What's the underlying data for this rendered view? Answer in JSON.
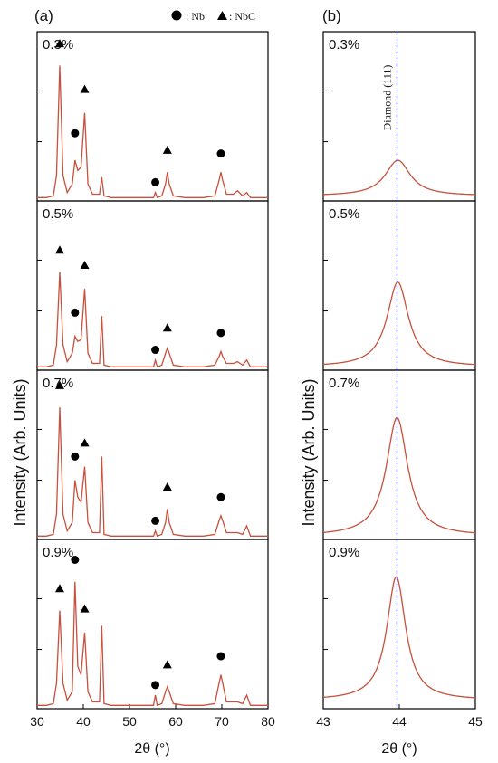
{
  "figure": {
    "panel_a_label": "(a)",
    "panel_b_label": "(b)",
    "legend_nb": ": Nb",
    "legend_nbc": ": NbC",
    "y_axis_label": "Intensity (Arb. Units)",
    "x_axis_label": "2θ (°)",
    "diamond_label": "Diamond (111)",
    "panel_a_ticks": [
      "30",
      "40",
      "50",
      "60",
      "70",
      "80"
    ],
    "panel_b_ticks": [
      "43",
      "44",
      "45"
    ],
    "colors": {
      "curve": "#c8503c",
      "reference_line": "#3b4bd8",
      "axes": "#000000"
    }
  },
  "chart_data": [
    {
      "type": "line",
      "panel": "(a)",
      "xlabel": "2θ (°)",
      "ylabel": "Intensity (Arb. Units)",
      "xlim": [
        30,
        80
      ],
      "ylim": [
        0,
        1
      ],
      "grid": false,
      "legend": [
        {
          "marker": "circle",
          "label": ": Nb"
        },
        {
          "marker": "triangle",
          "label": ": NbC"
        }
      ],
      "series": [
        {
          "label": "0.3%",
          "x": [
            30,
            32,
            33.5,
            34.2,
            34.9,
            35.6,
            36.5,
            37.6,
            38.2,
            38.8,
            39.5,
            40.3,
            41,
            42,
            43.5,
            44,
            44.5,
            46,
            48,
            50,
            52,
            54,
            55.2,
            55.6,
            56,
            57,
            57.8,
            58.2,
            58.6,
            59.5,
            62,
            66,
            68.5,
            69.4,
            69.8,
            70.2,
            71,
            72.5,
            73.4,
            74.5,
            75.4,
            76.2,
            78,
            80
          ],
          "y": [
            0.02,
            0.02,
            0.03,
            0.15,
            0.8,
            0.15,
            0.05,
            0.1,
            0.24,
            0.18,
            0.2,
            0.52,
            0.1,
            0.04,
            0.04,
            0.14,
            0.03,
            0.02,
            0.02,
            0.02,
            0.02,
            0.02,
            0.02,
            0.05,
            0.02,
            0.03,
            0.1,
            0.17,
            0.1,
            0.03,
            0.02,
            0.02,
            0.03,
            0.12,
            0.17,
            0.12,
            0.04,
            0.04,
            0.06,
            0.03,
            0.05,
            0.02,
            0.02,
            0.02
          ]
        },
        {
          "label": "0.5%",
          "x": [
            30,
            32,
            33.5,
            34.2,
            34.9,
            35.6,
            36.5,
            37.6,
            38.2,
            38.8,
            39.5,
            40.3,
            41,
            42,
            43.5,
            44,
            44.5,
            46,
            48,
            50,
            52,
            54,
            55.2,
            55.6,
            56,
            57,
            57.8,
            58.2,
            58.6,
            59.5,
            62,
            66,
            68.5,
            69.4,
            69.8,
            70.2,
            71,
            72.5,
            73.4,
            74.5,
            75.4,
            76.2,
            78,
            80
          ],
          "y": [
            0.02,
            0.02,
            0.03,
            0.15,
            0.58,
            0.15,
            0.05,
            0.1,
            0.2,
            0.17,
            0.18,
            0.48,
            0.1,
            0.04,
            0.04,
            0.32,
            0.03,
            0.02,
            0.02,
            0.02,
            0.02,
            0.02,
            0.02,
            0.06,
            0.02,
            0.03,
            0.1,
            0.13,
            0.1,
            0.03,
            0.02,
            0.02,
            0.03,
            0.08,
            0.11,
            0.08,
            0.04,
            0.04,
            0.05,
            0.03,
            0.06,
            0.02,
            0.02,
            0.02
          ]
        },
        {
          "label": "0.7%",
          "x": [
            30,
            32,
            33.5,
            34.2,
            34.9,
            35.6,
            36.5,
            37.6,
            38.2,
            38.8,
            39.5,
            40.3,
            41,
            42,
            43.5,
            44,
            44.5,
            46,
            48,
            50,
            52,
            54,
            55.2,
            55.6,
            56,
            57,
            57.8,
            58.2,
            58.6,
            59.5,
            62,
            66,
            68.5,
            69.4,
            69.8,
            70.2,
            71,
            72.5,
            73.4,
            74.5,
            75.4,
            76.2,
            78,
            80
          ],
          "y": [
            0.02,
            0.02,
            0.03,
            0.15,
            0.78,
            0.15,
            0.05,
            0.1,
            0.35,
            0.25,
            0.22,
            0.43,
            0.1,
            0.04,
            0.04,
            0.49,
            0.03,
            0.02,
            0.02,
            0.02,
            0.02,
            0.02,
            0.02,
            0.05,
            0.02,
            0.03,
            0.1,
            0.18,
            0.1,
            0.03,
            0.02,
            0.02,
            0.03,
            0.11,
            0.14,
            0.11,
            0.04,
            0.04,
            0.04,
            0.03,
            0.08,
            0.02,
            0.02,
            0.02
          ]
        },
        {
          "label": "0.9%",
          "x": [
            30,
            32,
            33.5,
            34.2,
            34.9,
            35.6,
            36.5,
            37.6,
            38.2,
            38.8,
            39.5,
            40.3,
            41,
            42,
            43.5,
            44,
            44.5,
            46,
            48,
            50,
            52,
            54,
            55.2,
            55.6,
            56,
            57,
            57.8,
            58.2,
            58.6,
            59.5,
            62,
            66,
            68.5,
            69.4,
            69.8,
            70.2,
            71,
            72.5,
            73.4,
            74.5,
            75.4,
            76.2,
            78,
            80
          ],
          "y": [
            0.02,
            0.02,
            0.03,
            0.15,
            0.58,
            0.15,
            0.05,
            0.1,
            0.75,
            0.25,
            0.2,
            0.45,
            0.1,
            0.04,
            0.04,
            0.49,
            0.03,
            0.02,
            0.02,
            0.02,
            0.02,
            0.02,
            0.02,
            0.08,
            0.02,
            0.03,
            0.1,
            0.13,
            0.1,
            0.03,
            0.02,
            0.02,
            0.03,
            0.15,
            0.2,
            0.15,
            0.04,
            0.04,
            0.04,
            0.03,
            0.08,
            0.02,
            0.02,
            0.02
          ]
        }
      ],
      "markers": {
        "nb_circle": [
          {
            "panel": "0.3%",
            "x": 38.2,
            "y": 0.4
          },
          {
            "panel": "0.3%",
            "x": 55.6,
            "y": 0.11
          },
          {
            "panel": "0.3%",
            "x": 69.8,
            "y": 0.28
          },
          {
            "panel": "0.5%",
            "x": 38.2,
            "y": 0.34
          },
          {
            "panel": "0.5%",
            "x": 55.6,
            "y": 0.12
          },
          {
            "panel": "0.5%",
            "x": 69.8,
            "y": 0.22
          },
          {
            "panel": "0.7%",
            "x": 38.2,
            "y": 0.49
          },
          {
            "panel": "0.7%",
            "x": 55.6,
            "y": 0.11
          },
          {
            "panel": "0.7%",
            "x": 69.8,
            "y": 0.25
          },
          {
            "panel": "0.9%",
            "x": 38.2,
            "y": 0.88
          },
          {
            "panel": "0.9%",
            "x": 55.6,
            "y": 0.14
          },
          {
            "panel": "0.9%",
            "x": 69.8,
            "y": 0.31
          }
        ],
        "nbc_triangle": [
          {
            "panel": "0.3%",
            "x": 34.9,
            "y": 0.93
          },
          {
            "panel": "0.3%",
            "x": 40.3,
            "y": 0.66
          },
          {
            "panel": "0.3%",
            "x": 58.2,
            "y": 0.3
          },
          {
            "panel": "0.5%",
            "x": 34.9,
            "y": 0.71
          },
          {
            "panel": "0.5%",
            "x": 40.3,
            "y": 0.62
          },
          {
            "panel": "0.5%",
            "x": 58.2,
            "y": 0.25
          },
          {
            "panel": "0.7%",
            "x": 34.9,
            "y": 0.91
          },
          {
            "panel": "0.7%",
            "x": 40.3,
            "y": 0.57
          },
          {
            "panel": "0.7%",
            "x": 58.2,
            "y": 0.31
          },
          {
            "panel": "0.9%",
            "x": 34.9,
            "y": 0.71
          },
          {
            "panel": "0.9%",
            "x": 40.3,
            "y": 0.59
          },
          {
            "panel": "0.9%",
            "x": 58.2,
            "y": 0.26
          }
        ]
      }
    },
    {
      "type": "line",
      "panel": "(b)",
      "xlabel": "2θ (°)",
      "ylabel": "Intensity (Arb. Units)",
      "xlim": [
        43,
        45
      ],
      "ylim": [
        0,
        1
      ],
      "grid": false,
      "reference_line": {
        "x": 43.97,
        "label": "Diamond (111)",
        "style": "dashed"
      },
      "series": [
        {
          "label": "0.3%",
          "center": 43.98,
          "peak": 0.24,
          "base": 0.03,
          "half_width": 0.2
        },
        {
          "label": "0.5%",
          "center": 43.98,
          "peak": 0.52,
          "base": 0.02,
          "half_width": 0.17
        },
        {
          "label": "0.7%",
          "center": 43.97,
          "peak": 0.72,
          "base": 0.02,
          "half_width": 0.17
        },
        {
          "label": "0.9%",
          "center": 43.96,
          "peak": 0.78,
          "base": 0.05,
          "half_width": 0.15
        }
      ]
    }
  ]
}
